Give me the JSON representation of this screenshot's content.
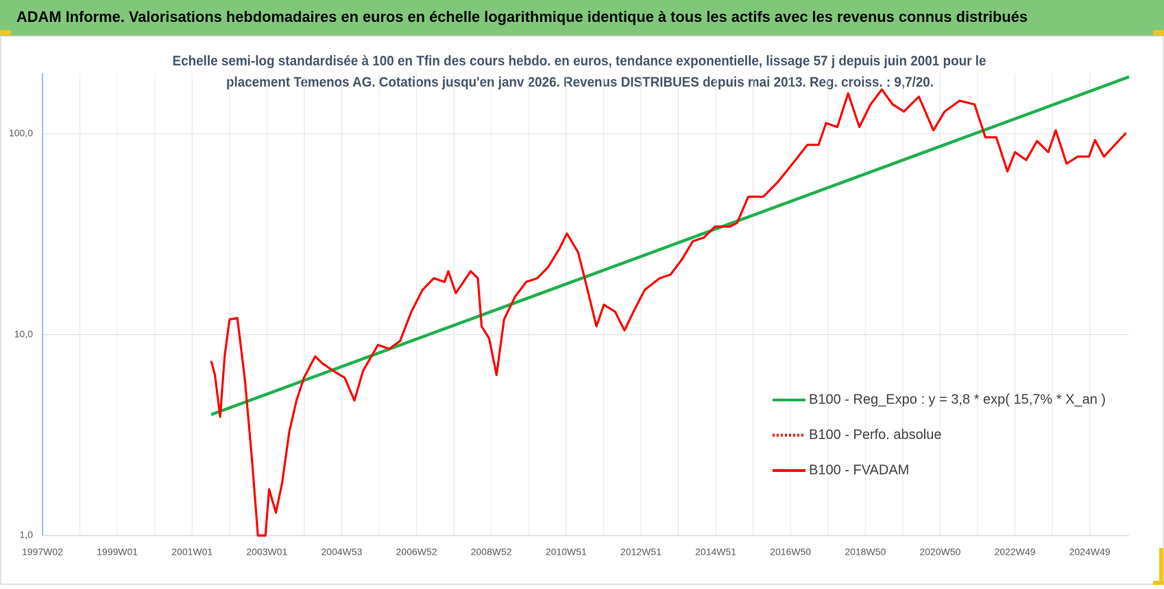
{
  "header": {
    "title": "ADAM Informe. Valorisations hebdomadaires en euros en échelle logarithmique identique à tous les actifs avec les revenus connus distribués"
  },
  "chart_data": {
    "type": "line",
    "title_lines": [
      "Echelle semi-log standardisée à 100 en Tfin des cours hebdo. en euros, tendance exponentielle, lissage 57 j depuis juin 2001 pour le",
      "placement Temenos AG. Cotations jusqu'en janv 2026. Revenus DISTRIBUES depuis mai 2013. Reg. croiss. : 9,7/20."
    ],
    "log_scale": true,
    "grid": true,
    "xlim": [
      1997.0,
      2026.05
    ],
    "xticks": [
      {
        "value": 1997,
        "label": "1997W02"
      },
      {
        "value": 1999,
        "label": "1999W01"
      },
      {
        "value": 2001,
        "label": "2001W01"
      },
      {
        "value": 2003,
        "label": "2003W01"
      },
      {
        "value": 2005,
        "label": "2004W53"
      },
      {
        "value": 2007,
        "label": "2006W52"
      },
      {
        "value": 2009,
        "label": "2008W52"
      },
      {
        "value": 2011,
        "label": "2010W51"
      },
      {
        "value": 2013,
        "label": "2012W51"
      },
      {
        "value": 2015,
        "label": "2014W51"
      },
      {
        "value": 2017,
        "label": "2016W50"
      },
      {
        "value": 2019,
        "label": "2018W50"
      },
      {
        "value": 2021,
        "label": "2020W50"
      },
      {
        "value": 2023,
        "label": "2022W49"
      },
      {
        "value": 2025,
        "label": "2024W49"
      }
    ],
    "ylim": [
      1,
      200
    ],
    "yticks": [
      {
        "value": 1,
        "label": "1,0"
      },
      {
        "value": 10,
        "label": "10,0"
      },
      {
        "value": 100,
        "label": "100,0"
      }
    ],
    "series": [
      {
        "name": "B100 - Reg_Expo : y = 3,8 * exp( 15,7% *  X_an )",
        "color": "#1fb04c",
        "dash": "solid",
        "x": [
          2001.51,
          2026.05
        ],
        "values": [
          4.0,
          192
        ]
      },
      {
        "name": "B100 - Perfo. absolue",
        "color": "#ff0000",
        "dash": "dotted",
        "x": [],
        "values": []
      },
      {
        "name": "B100 - FVADAM",
        "color": "#ff0000",
        "dash": "solid",
        "x": [
          2001.51,
          2001.61,
          2001.75,
          2001.87,
          2002.0,
          2002.21,
          2002.41,
          2002.6,
          2002.76,
          2002.96,
          2003.06,
          2003.24,
          2003.4,
          2003.6,
          2003.79,
          2003.99,
          2004.29,
          2004.48,
          2004.78,
          2005.08,
          2005.34,
          2005.57,
          2005.97,
          2006.27,
          2006.56,
          2006.86,
          2007.16,
          2007.46,
          2007.75,
          2007.85,
          2008.05,
          2008.45,
          2008.64,
          2008.74,
          2008.94,
          2009.14,
          2009.34,
          2009.63,
          2009.93,
          2010.23,
          2010.52,
          2010.82,
          2011.02,
          2011.32,
          2011.52,
          2011.81,
          2012.01,
          2012.31,
          2012.56,
          2012.8,
          2013.1,
          2013.5,
          2013.79,
          2014.09,
          2014.39,
          2014.68,
          2014.98,
          2015.38,
          2015.57,
          2015.87,
          2016.27,
          2016.66,
          2017.06,
          2017.45,
          2017.75,
          2017.95,
          2018.25,
          2018.54,
          2018.84,
          2019.14,
          2019.44,
          2019.73,
          2020.03,
          2020.43,
          2020.82,
          2021.12,
          2021.52,
          2021.92,
          2022.21,
          2022.5,
          2022.8,
          2023.0,
          2023.3,
          2023.59,
          2023.89,
          2024.09,
          2024.38,
          2024.68,
          2024.98,
          2025.14,
          2025.38,
          2025.67,
          2025.97
        ],
        "values": [
          7.4,
          6.3,
          3.9,
          7.8,
          11.9,
          12.1,
          6.0,
          2.4,
          1.0,
          1.0,
          1.7,
          1.3,
          1.8,
          3.3,
          4.7,
          6.1,
          7.8,
          7.2,
          6.6,
          6.1,
          4.7,
          6.6,
          8.9,
          8.5,
          9.3,
          13.0,
          16.7,
          19.1,
          18.3,
          20.7,
          16.1,
          20.7,
          19.1,
          11.0,
          9.6,
          6.3,
          11.9,
          15.4,
          18.3,
          19.1,
          21.7,
          26.8,
          31.9,
          25.7,
          18.3,
          11.0,
          14.1,
          13.0,
          10.5,
          13.0,
          16.7,
          19.1,
          19.9,
          23.6,
          29.2,
          30.4,
          34.5,
          34.5,
          36.0,
          48.6,
          48.6,
          57.5,
          71.2,
          88.1,
          88.1,
          113,
          108,
          159,
          108,
          140,
          166,
          140,
          129,
          153,
          104,
          129,
          146,
          140,
          96,
          96,
          65,
          81,
          74,
          92,
          81,
          104,
          71,
          77,
          77,
          93,
          77,
          88,
          101
        ]
      }
    ],
    "legend": "right"
  }
}
